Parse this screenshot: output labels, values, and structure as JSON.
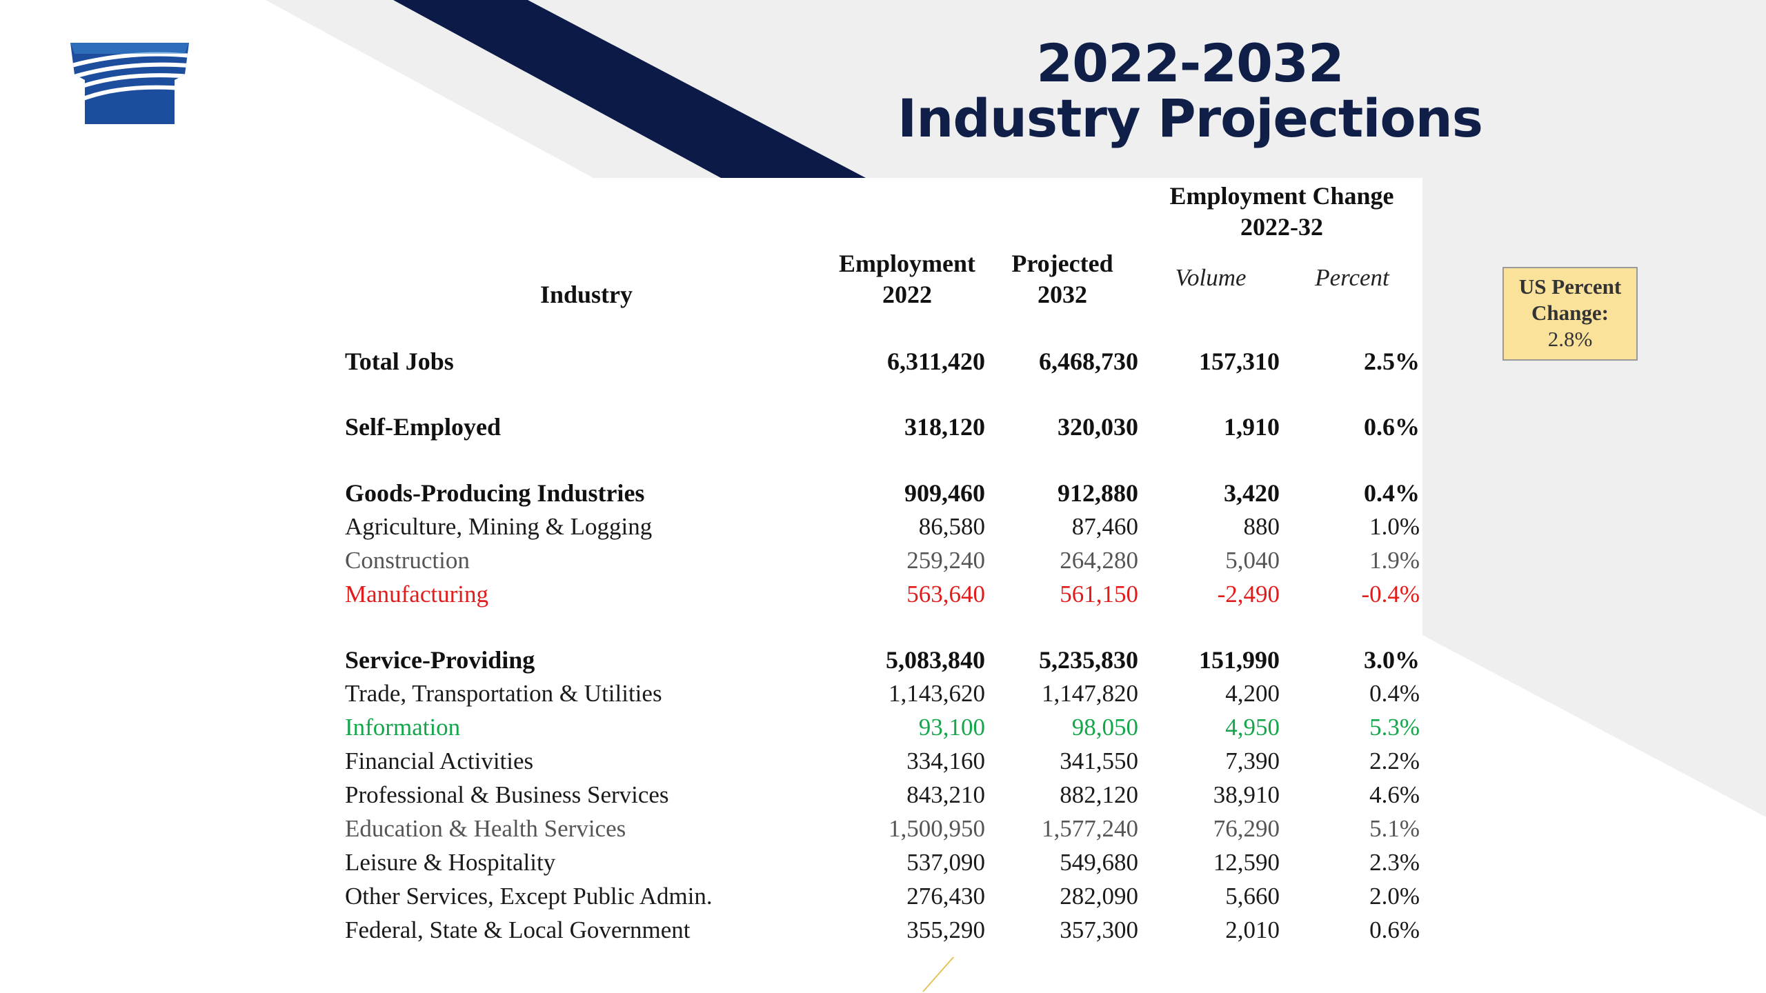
{
  "title": {
    "line1": "2022-2032",
    "line2": "Industry Projections"
  },
  "colors": {
    "navy": "#0f1f48",
    "title": "#0f1f48",
    "red": "#e21b1b",
    "green": "#14a64a",
    "gray_text": "#555555",
    "us_box_fill": "#fbe29a"
  },
  "icons": {
    "logo": "keystone-logo-icon"
  },
  "table": {
    "headers": {
      "industry": "Industry",
      "employment_2022": [
        "Employment",
        "2022"
      ],
      "projected_2032": [
        "Projected",
        "2032"
      ],
      "change_group": [
        "Employment Change",
        "2022-32"
      ],
      "volume": "Volume",
      "percent": "Percent"
    },
    "rows": [
      {
        "industry": "Total Jobs",
        "employment_2022": "6,311,420",
        "projected_2032": "6,468,730",
        "volume": "157,310",
        "percent": "2.5%",
        "style": "bold"
      },
      {
        "industry": "Self-Employed",
        "employment_2022": "318,120",
        "projected_2032": "320,030",
        "volume": "1,910",
        "percent": "0.6%",
        "style": "bold"
      },
      {
        "industry": "Goods-Producing Industries",
        "employment_2022": "909,460",
        "projected_2032": "912,880",
        "volume": "3,420",
        "percent": "0.4%",
        "style": "bold"
      },
      {
        "industry": "Agriculture, Mining & Logging",
        "employment_2022": "86,580",
        "projected_2032": "87,460",
        "volume": "880",
        "percent": "1.0%",
        "style": "normal"
      },
      {
        "industry": "Construction",
        "employment_2022": "259,240",
        "projected_2032": "264,280",
        "volume": "5,040",
        "percent": "1.9%",
        "style": "gray"
      },
      {
        "industry": "Manufacturing",
        "employment_2022": "563,640",
        "projected_2032": "561,150",
        "volume": "-2,490",
        "percent": "-0.4%",
        "style": "red"
      },
      {
        "industry": "Service-Providing",
        "employment_2022": "5,083,840",
        "projected_2032": "5,235,830",
        "volume": "151,990",
        "percent": "3.0%",
        "style": "bold"
      },
      {
        "industry": "Trade, Transportation & Utilities",
        "employment_2022": "1,143,620",
        "projected_2032": "1,147,820",
        "volume": "4,200",
        "percent": "0.4%",
        "style": "normal"
      },
      {
        "industry": "Information",
        "employment_2022": "93,100",
        "projected_2032": "98,050",
        "volume": "4,950",
        "percent": "5.3%",
        "style": "green"
      },
      {
        "industry": "Financial Activities",
        "employment_2022": "334,160",
        "projected_2032": "341,550",
        "volume": "7,390",
        "percent": "2.2%",
        "style": "normal"
      },
      {
        "industry": "Professional & Business Services",
        "employment_2022": "843,210",
        "projected_2032": "882,120",
        "volume": "38,910",
        "percent": "4.6%",
        "style": "normal"
      },
      {
        "industry": "Education & Health Services",
        "employment_2022": "1,500,950",
        "projected_2032": "1,577,240",
        "volume": "76,290",
        "percent": "5.1%",
        "style": "gray"
      },
      {
        "industry": "Leisure & Hospitality",
        "employment_2022": "537,090",
        "projected_2032": "549,680",
        "volume": "12,590",
        "percent": "2.3%",
        "style": "normal"
      },
      {
        "industry": "Other Services, Except Public Admin.",
        "employment_2022": "276,430",
        "projected_2032": "282,090",
        "volume": "5,660",
        "percent": "2.0%",
        "style": "normal"
      },
      {
        "industry": "Federal, State & Local Government",
        "employment_2022": "355,290",
        "projected_2032": "357,300",
        "volume": "2,010",
        "percent": "0.6%",
        "style": "normal"
      }
    ]
  },
  "us_box": {
    "label_line1": "US Percent",
    "label_line2": "Change:",
    "value": "2.8%"
  }
}
